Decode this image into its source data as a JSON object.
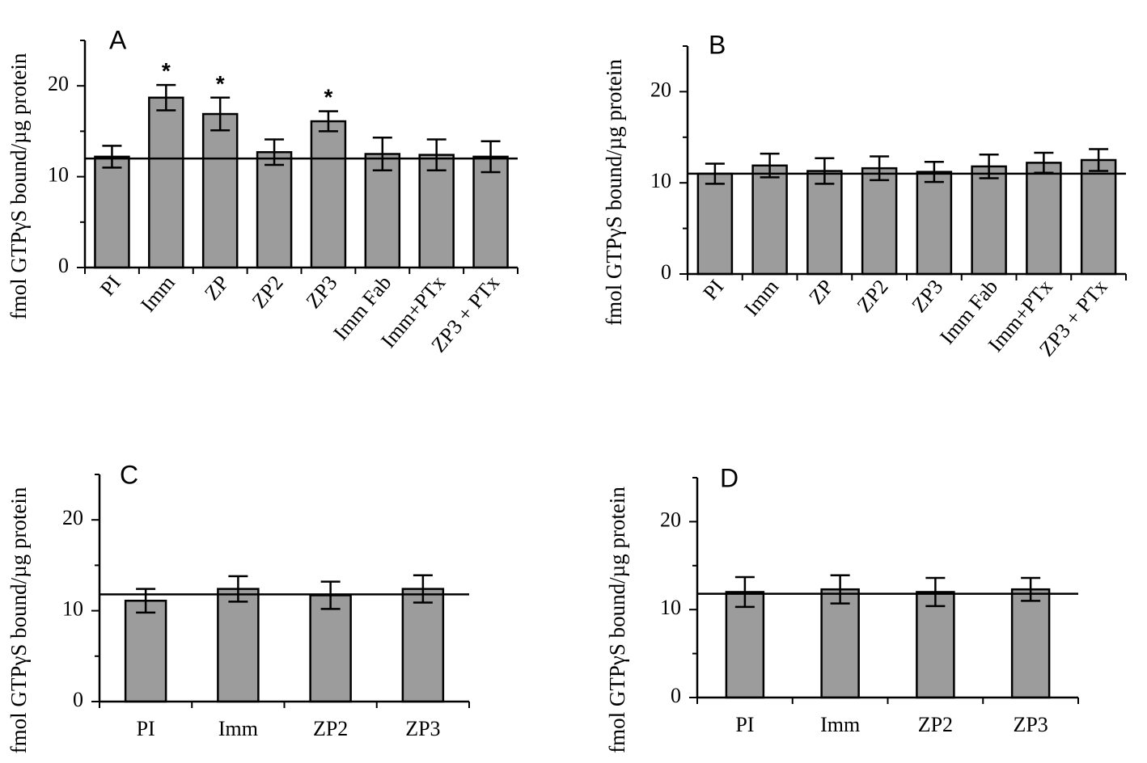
{
  "chart_data": [
    {
      "type": "bar",
      "panel": "A",
      "ylabel": "fmol GTPγS bound/µg protein",
      "ylim": [
        0,
        25
      ],
      "yticks": [
        0,
        10,
        20
      ],
      "categories": [
        "PI",
        "Imm",
        "ZP",
        "ZP2",
        "ZP3",
        "Imm Fab",
        "Imm+PTx",
        "ZP3 + PTx"
      ],
      "values": [
        12.2,
        18.7,
        16.9,
        12.7,
        16.1,
        12.5,
        12.4,
        12.2
      ],
      "errors": [
        1.2,
        1.4,
        1.8,
        1.4,
        1.1,
        1.8,
        1.7,
        1.7
      ],
      "significant": [
        false,
        true,
        true,
        false,
        true,
        false,
        false,
        false
      ],
      "significance_marker": "*",
      "reference_line": 12.0,
      "rotated_labels": true
    },
    {
      "type": "bar",
      "panel": "B",
      "ylabel": "fmol GTPγS bound/µg protein",
      "ylim": [
        0,
        25
      ],
      "yticks": [
        0,
        10,
        20
      ],
      "categories": [
        "PI",
        "Imm",
        "ZP",
        "ZP2",
        "ZP3",
        "Imm Fab",
        "Imm+PTx",
        "ZP3 + PTx"
      ],
      "values": [
        11.0,
        11.9,
        11.3,
        11.6,
        11.2,
        11.8,
        12.2,
        12.5
      ],
      "errors": [
        1.1,
        1.3,
        1.4,
        1.3,
        1.1,
        1.3,
        1.1,
        1.2
      ],
      "significant": [
        false,
        false,
        false,
        false,
        false,
        false,
        false,
        false
      ],
      "significance_marker": "*",
      "reference_line": 11.0,
      "rotated_labels": true
    },
    {
      "type": "bar",
      "panel": "C",
      "ylabel": "fmol GTPγS bound/µg protein",
      "ylim": [
        0,
        25
      ],
      "yticks": [
        0,
        10,
        20
      ],
      "categories": [
        "PI",
        "Imm",
        "ZP2",
        "ZP3"
      ],
      "values": [
        11.1,
        12.4,
        11.7,
        12.4
      ],
      "errors": [
        1.3,
        1.4,
        1.5,
        1.5
      ],
      "significant": [
        false,
        false,
        false,
        false
      ],
      "significance_marker": "*",
      "reference_line": 11.8,
      "rotated_labels": false
    },
    {
      "type": "bar",
      "panel": "D",
      "ylabel": "fmol GTPγS bound/µg protein",
      "ylim": [
        0,
        25
      ],
      "yticks": [
        0,
        10,
        20
      ],
      "categories": [
        "PI",
        "Imm",
        "ZP2",
        "ZP3"
      ],
      "values": [
        12.0,
        12.3,
        12.0,
        12.3
      ],
      "errors": [
        1.7,
        1.6,
        1.6,
        1.3
      ],
      "significant": [
        false,
        false,
        false,
        false
      ],
      "significance_marker": "*",
      "reference_line": 11.8,
      "rotated_labels": false
    }
  ]
}
